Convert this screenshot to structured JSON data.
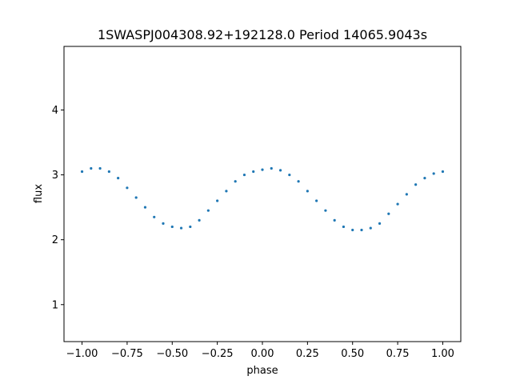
{
  "chart_data": {
    "type": "scatter",
    "title": "1SWASPJ004308.92+192128.0 Period 14065.9043s",
    "xlabel": "phase",
    "ylabel": "flux",
    "xlim": [
      -1.1,
      1.1
    ],
    "ylim": [
      0.43,
      4.98
    ],
    "xticks": [
      -1.0,
      -0.75,
      -0.5,
      -0.25,
      0.0,
      0.25,
      0.5,
      0.75,
      1.0
    ],
    "xtick_labels": [
      "−1.00",
      "−0.75",
      "−0.50",
      "−0.25",
      "0.00",
      "0.25",
      "0.50",
      "0.75",
      "1.00"
    ],
    "yticks": [
      1,
      2,
      3,
      4
    ],
    "ytick_labels": [
      "1",
      "2",
      "3",
      "4"
    ],
    "grid": false,
    "series": [
      {
        "marker_color": "#1f77b4",
        "x": [
          -1.0,
          -0.95,
          -0.9,
          -0.85,
          -0.8,
          -0.75,
          -0.7,
          -0.65,
          -0.6,
          -0.55,
          -0.5,
          -0.45,
          -0.4,
          -0.35,
          -0.3,
          -0.25,
          -0.2,
          -0.15,
          -0.1,
          -0.05,
          0.0,
          0.05,
          0.1,
          0.15,
          0.2,
          0.25,
          0.3,
          0.35,
          0.4,
          0.45,
          0.5,
          0.55,
          0.6,
          0.65,
          0.7,
          0.75,
          0.8,
          0.85,
          0.9,
          0.95,
          1.0
        ],
        "y": [
          3.05,
          3.1,
          3.1,
          3.05,
          2.95,
          2.8,
          2.65,
          2.5,
          2.35,
          2.25,
          2.2,
          2.18,
          2.2,
          2.3,
          2.45,
          2.6,
          2.75,
          2.9,
          3.0,
          3.05,
          3.08,
          3.1,
          3.07,
          3.0,
          2.9,
          2.75,
          2.6,
          2.45,
          2.3,
          2.2,
          2.15,
          2.15,
          2.18,
          2.25,
          2.4,
          2.55,
          2.7,
          2.85,
          2.95,
          3.02,
          3.05
        ]
      }
    ]
  }
}
